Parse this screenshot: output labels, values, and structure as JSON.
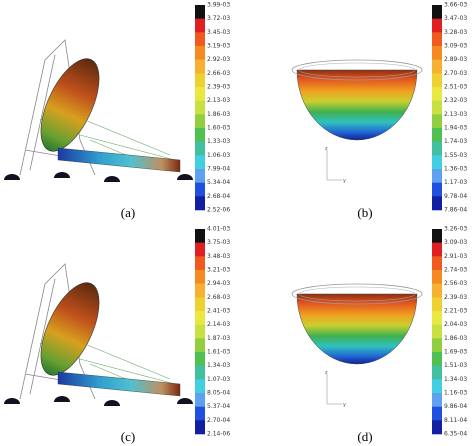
{
  "panels": [
    {
      "label": "(a)",
      "scale": [
        "3.99-03",
        "3.72-03",
        "3.45-03",
        "3.19-03",
        "2.92-03",
        "2.66-03",
        "2.39-03",
        "2.13-03",
        "1.86-03",
        "1.60-03",
        "1.33-03",
        "1.06-03",
        "7.99-04",
        "5.34-04",
        "2.68-04",
        "2.52-06"
      ]
    },
    {
      "label": "(b)",
      "scale": [
        "3.66-03",
        "3.47-03",
        "3.28-03",
        "3.09-03",
        "2.89-03",
        "2.70-03",
        "2.51-03",
        "2.32-03",
        "2.13-03",
        "1.94-03",
        "1.74-03",
        "1.55-03",
        "1.36-03",
        "1.17-03",
        "9.78-04",
        "7.86-04"
      ],
      "triad": [
        "z",
        "y"
      ]
    },
    {
      "label": "(c)",
      "scale": [
        "4.01-03",
        "3.75-03",
        "3.48-03",
        "3.21-03",
        "2.94-03",
        "2.68-03",
        "2.41-03",
        "2.14-03",
        "1.87-03",
        "1.61-03",
        "1.34-03",
        "1.07-03",
        "8.05-04",
        "5.37-04",
        "2.70-04",
        "2.14-06"
      ]
    },
    {
      "label": "(d)",
      "scale": [
        "3.26-03",
        "3.09-03",
        "2.91-03",
        "2.74-03",
        "2.56-03",
        "2.39-03",
        "2.21-03",
        "2.04-03",
        "1.86-03",
        "1.69-03",
        "1.51-03",
        "1.34-03",
        "1.16-03",
        "9.86-04",
        "8.11-04",
        "6.35-04"
      ],
      "triad": [
        "z",
        "y"
      ]
    }
  ]
}
